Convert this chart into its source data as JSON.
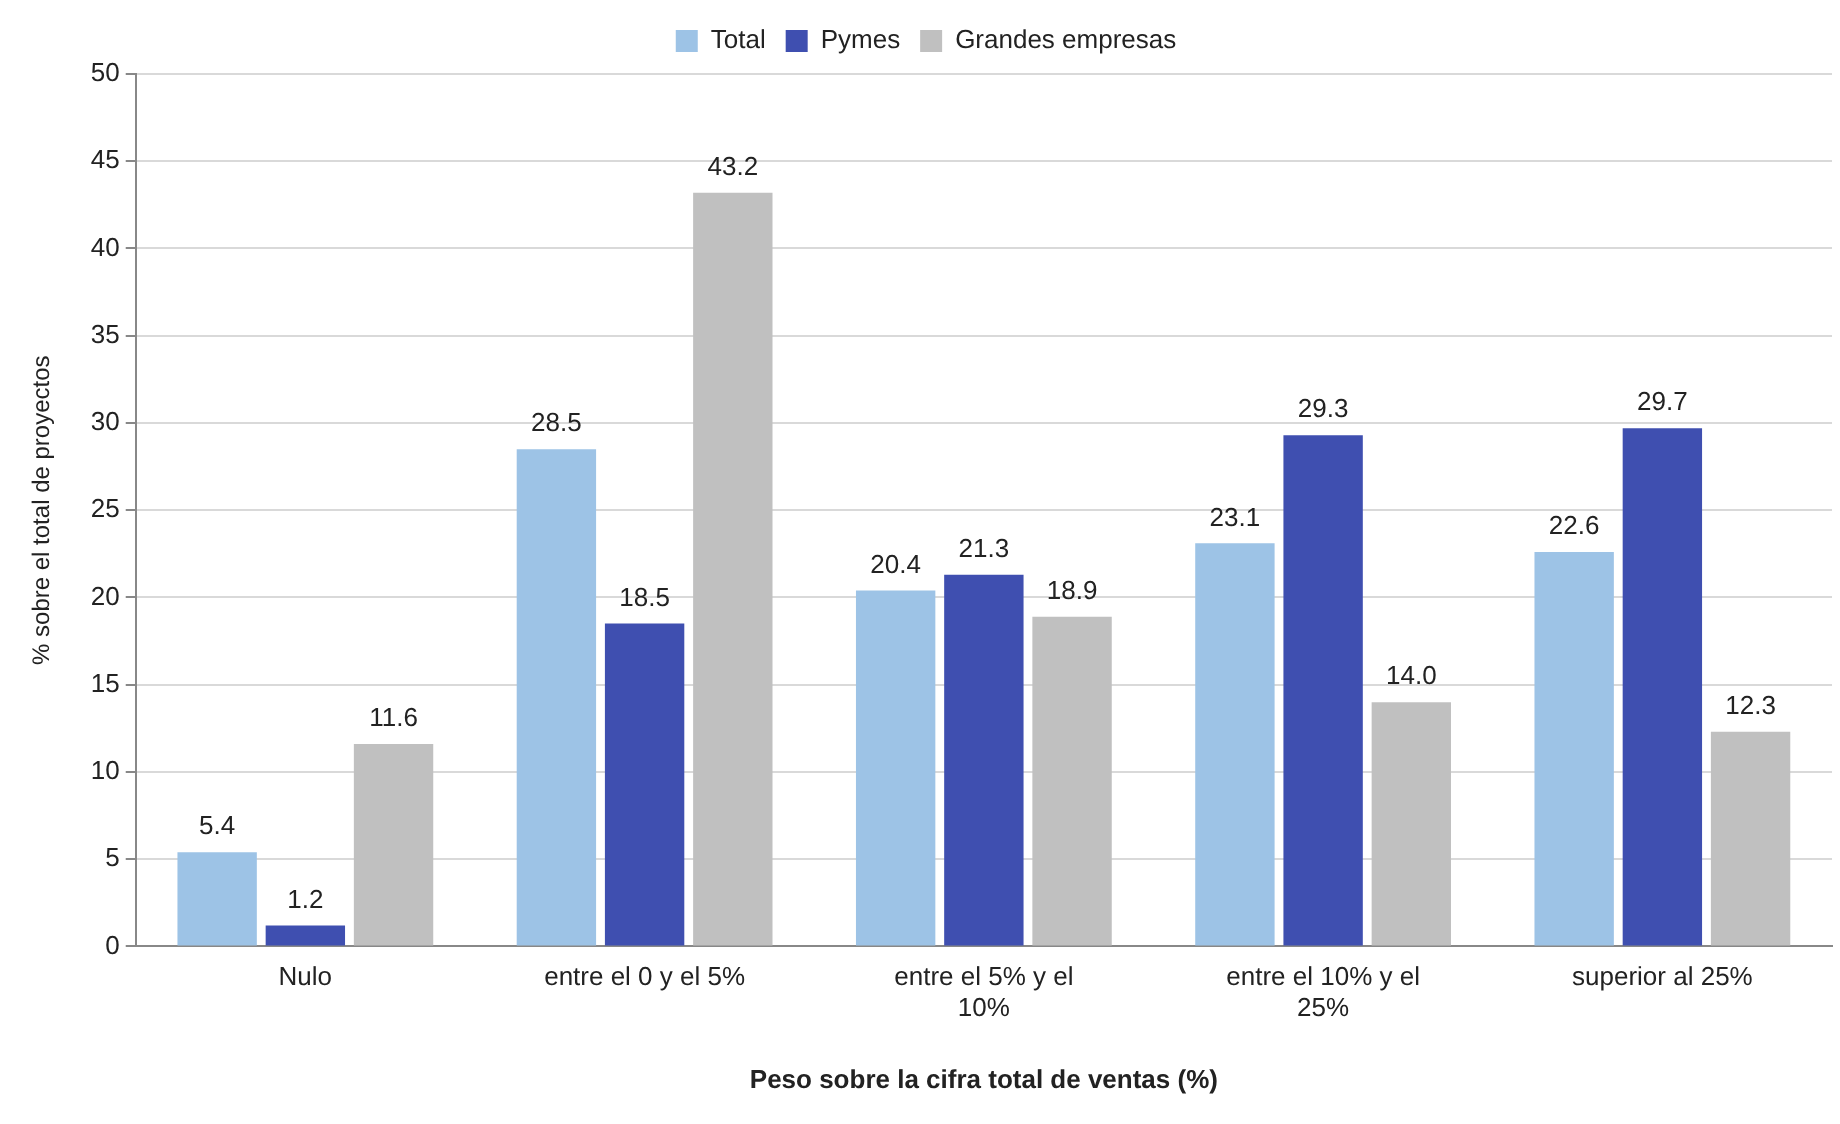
{
  "chart_data": {
    "type": "bar",
    "xlabel": "Peso sobre la cifra total de ventas (%)",
    "ylabel": "% sobre el total de proyectos",
    "categories": [
      "Nulo",
      "entre el 0 y el 5%",
      "entre el 5% y el 10%",
      "entre el 10% y el 25%",
      "superior al 25%"
    ],
    "series": [
      {
        "name": "Total",
        "color": "#9dc3e6",
        "values": [
          5.4,
          28.5,
          20.4,
          23.1,
          22.6
        ],
        "value_labels": [
          "5.4",
          "28.5",
          "20.4",
          "23.1",
          "22.6"
        ]
      },
      {
        "name": "Pymes",
        "color": "#3f4fb0",
        "values": [
          1.2,
          18.5,
          21.3,
          29.3,
          29.7
        ],
        "value_labels": [
          "1.2",
          "18.5",
          "21.3",
          "29.3",
          "29.7"
        ]
      },
      {
        "name": "Grandes empresas",
        "color": "#c0c0c0",
        "values": [
          11.6,
          43.2,
          18.9,
          14.0,
          12.3
        ],
        "value_labels": [
          "11.6",
          "43.2",
          "18.9",
          "14.0",
          "12.3"
        ]
      }
    ],
    "ylim": [
      0,
      50
    ],
    "yticks": [
      0,
      5,
      10,
      15,
      20,
      25,
      30,
      35,
      40,
      45,
      50
    ],
    "grid": "y",
    "legend": "top"
  }
}
